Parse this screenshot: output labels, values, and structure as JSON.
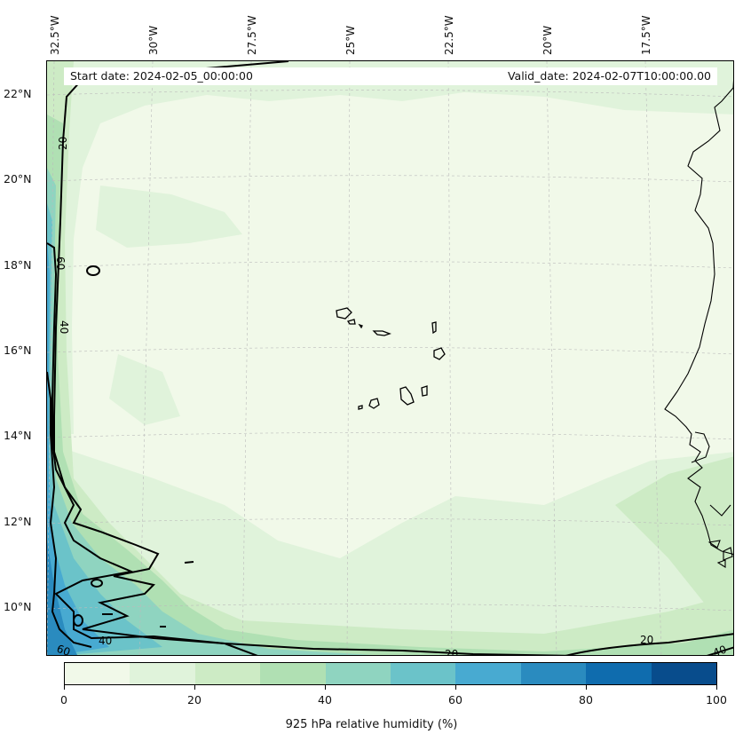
{
  "map": {
    "info": {
      "start_date": "Start date: 2024-02-05_00:00:00",
      "valid_date": "Valid_date: 2024-02-07T10:00:00.00"
    },
    "lon_labels": [
      "32.5°W",
      "30°W",
      "27.5°W",
      "25°W",
      "22.5°W",
      "20°W",
      "17.5°W"
    ],
    "lat_labels": [
      "22°N",
      "20°N",
      "18°N",
      "16°N",
      "14°N",
      "12°N",
      "10°N"
    ],
    "contour_labels": [
      "20",
      "60",
      "40",
      "40",
      "60",
      "20",
      "20",
      "40"
    ],
    "palette": [
      "#f1f9e9",
      "#e0f3db",
      "#cdebc5",
      "#b0e0b3",
      "#8fd4c0",
      "#6bc3c9",
      "#48aad1",
      "#2a8bbf",
      "#0f6cae",
      "#084c8c"
    ],
    "coastline_color": "#000000",
    "colorbar": {
      "ticks": [
        "0",
        "20",
        "40",
        "60",
        "80",
        "100"
      ],
      "label": "925 hPa relative humidity (%)",
      "range": [
        0,
        100
      ],
      "levels": 10
    }
  }
}
